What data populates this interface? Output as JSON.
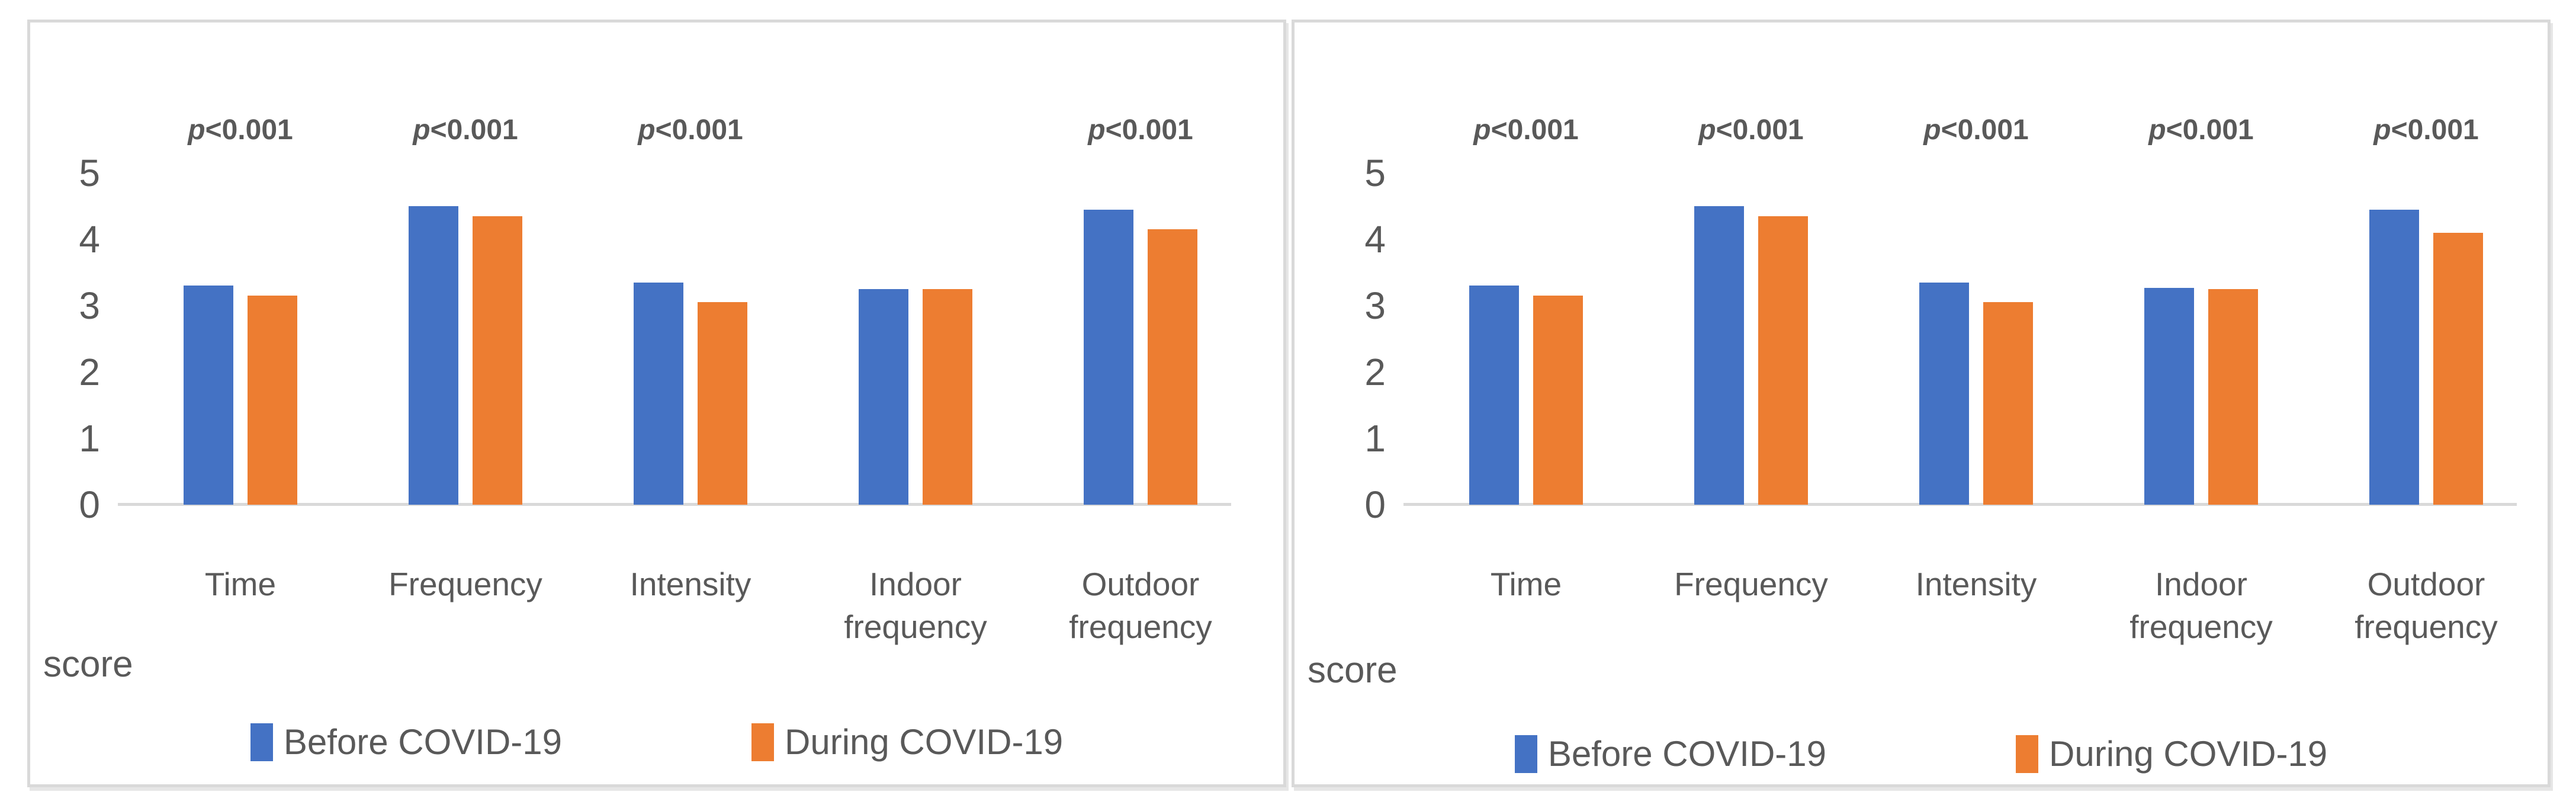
{
  "figure": {
    "background": "#ffffff",
    "panel_border_color": "#d9d9d9",
    "axis_line_color": "#d9d9d9",
    "text_color": "#595959"
  },
  "colors": {
    "before_covid": "#4472C4",
    "during_covid": "#ED7D31"
  },
  "chart_data": [
    {
      "type": "bar",
      "title": "",
      "axis_title": "score",
      "grid": false,
      "legend_position": "bottom",
      "ylim": [
        0,
        5.5
      ],
      "y_ticks": [
        0,
        1,
        2,
        3,
        4,
        5
      ],
      "categories": [
        "Time",
        "Frequency",
        "Intensity",
        "Indoor frequency",
        "Outdoor frequency"
      ],
      "category_lines": [
        [
          "Time"
        ],
        [
          "Frequency"
        ],
        [
          "Intensity"
        ],
        [
          "Indoor",
          "frequency"
        ],
        [
          "Outdoor",
          "frequency"
        ]
      ],
      "annotations": [
        "p<0.001",
        "p<0.001",
        "p<0.001",
        "",
        "p<0.001"
      ],
      "series": [
        {
          "name": "Before COVID-19",
          "color": "#4472C4",
          "values": [
            3.3,
            4.5,
            3.35,
            3.25,
            4.45
          ]
        },
        {
          "name": "During COVID-19",
          "color": "#ED7D31",
          "values": [
            3.15,
            4.35,
            3.05,
            3.25,
            4.15
          ]
        }
      ]
    },
    {
      "type": "bar",
      "title": "",
      "axis_title": "score",
      "grid": false,
      "legend_position": "bottom",
      "ylim": [
        0,
        5.5
      ],
      "y_ticks": [
        0,
        1,
        2,
        3,
        4,
        5
      ],
      "categories": [
        "Time",
        "Frequency",
        "Intensity",
        "Indoor frequency",
        "Outdoor frequency"
      ],
      "category_lines": [
        [
          "Time"
        ],
        [
          "Frequency"
        ],
        [
          "Intensity"
        ],
        [
          "Indoor",
          "frequency"
        ],
        [
          "Outdoor",
          "frequency"
        ]
      ],
      "annotations": [
        "p<0.001",
        "p<0.001",
        "p<0.001",
        "p<0.001",
        "p<0.001"
      ],
      "series": [
        {
          "name": "Before COVID-19",
          "color": "#4472C4",
          "values": [
            3.3,
            4.5,
            3.35,
            3.27,
            4.45
          ]
        },
        {
          "name": "During COVID-19",
          "color": "#ED7D31",
          "values": [
            3.15,
            4.35,
            3.05,
            3.25,
            4.1
          ]
        }
      ]
    }
  ]
}
